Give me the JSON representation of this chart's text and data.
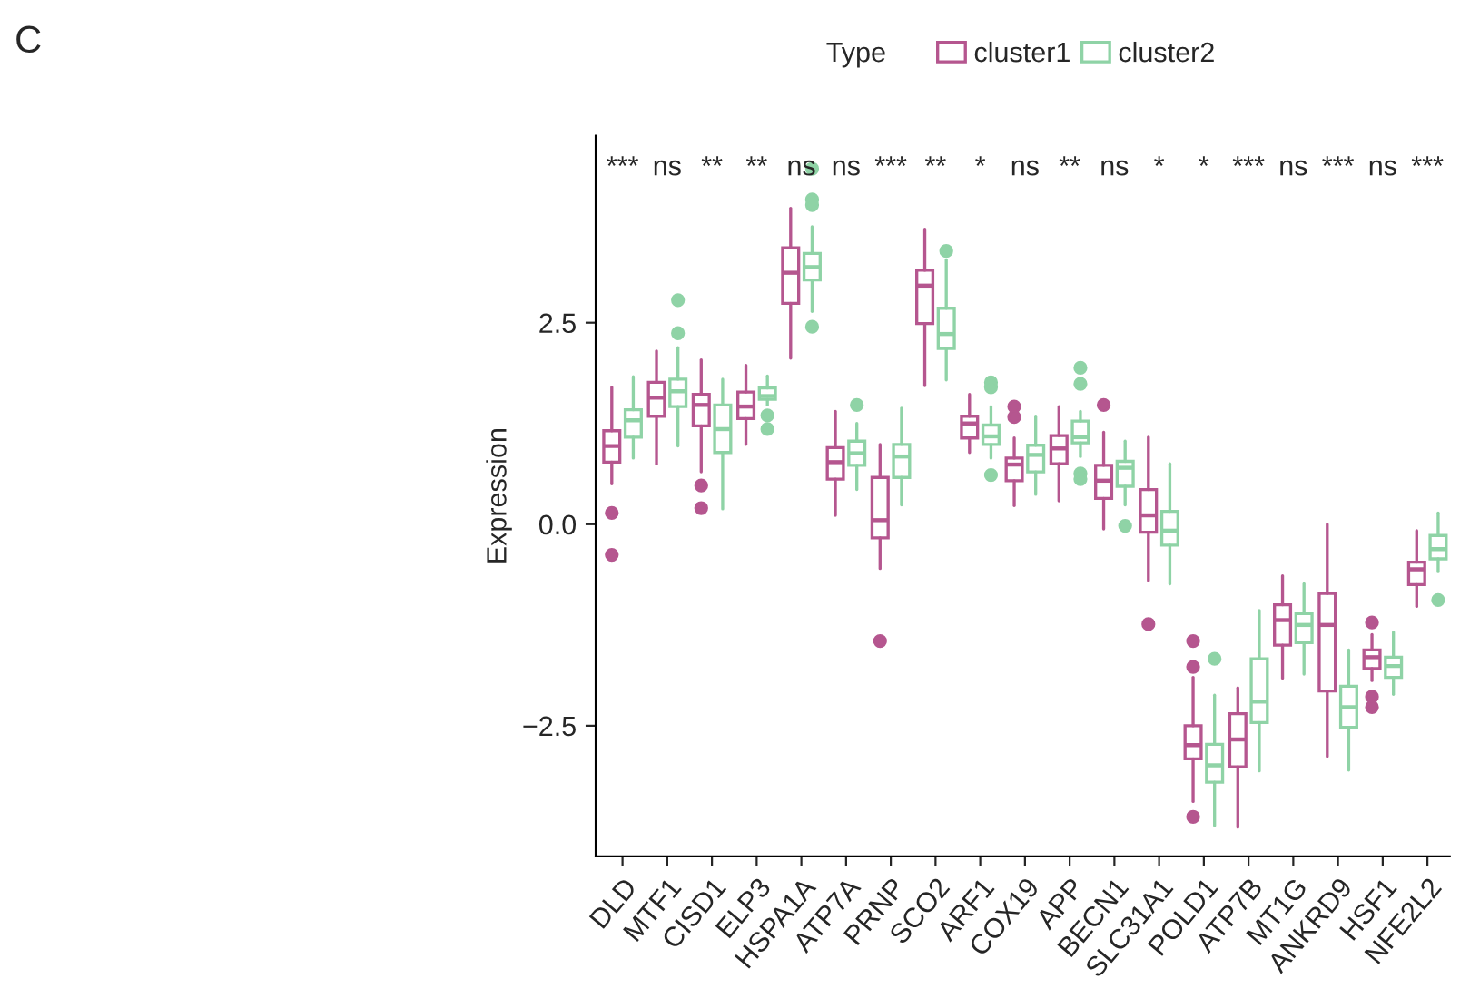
{
  "chart_data": {
    "type": "box",
    "xlabel": null,
    "ylabel": "Expression",
    "legend_title": "Type",
    "legend": "top",
    "marker": "circle",
    "categories": [
      "DLD",
      "MTF1",
      "CISD1",
      "ELP3",
      "HSPA1A",
      "ATP7A",
      "PRNP",
      "SCO2",
      "ARF1",
      "COX19",
      "APP",
      "BECN1",
      "SLC31A1",
      "POLD1",
      "ATP7B",
      "MT1G",
      "ANKRD9",
      "HSF1",
      "NFE2L2"
    ],
    "ylim": [
      -4.12,
      4.82
    ],
    "yticks": [
      {
        "value": -2.5,
        "label": "−2.5"
      },
      {
        "value": 0,
        "label": "0.0"
      },
      {
        "value": 2.5,
        "label": "2.5"
      }
    ],
    "grid": false,
    "series": [
      {
        "name": "cluster1",
        "color": "#b5568f",
        "boxes": [
          {
            "low": 0.5,
            "q1": 0.77,
            "median": 0.97,
            "q3": 1.16,
            "high": 1.7,
            "outliers": [
              0.14,
              -0.38
            ]
          },
          {
            "low": 0.75,
            "q1": 1.34,
            "median": 1.57,
            "q3": 1.76,
            "high": 2.15
          },
          {
            "low": 0.65,
            "q1": 1.22,
            "median": 1.48,
            "q3": 1.61,
            "high": 2.04,
            "outliers": [
              0.48,
              0.2
            ]
          },
          {
            "low": 0.99,
            "q1": 1.31,
            "median": 1.46,
            "q3": 1.64,
            "high": 1.97
          },
          {
            "low": 2.06,
            "q1": 2.74,
            "median": 3.12,
            "q3": 3.43,
            "high": 3.92
          },
          {
            "low": 0.11,
            "q1": 0.56,
            "median": 0.77,
            "q3": 0.95,
            "high": 1.4
          },
          {
            "low": -0.55,
            "q1": -0.17,
            "median": 0.05,
            "q3": 0.58,
            "high": 0.99,
            "outliers": [
              -1.45
            ]
          },
          {
            "low": 1.72,
            "q1": 2.49,
            "median": 2.96,
            "q3": 3.15,
            "high": 3.66
          },
          {
            "low": 0.89,
            "q1": 1.07,
            "median": 1.25,
            "q3": 1.34,
            "high": 1.61
          },
          {
            "low": 0.23,
            "q1": 0.54,
            "median": 0.74,
            "q3": 0.82,
            "high": 1.07,
            "outliers": [
              1.46,
              1.33
            ]
          },
          {
            "low": 0.29,
            "q1": 0.75,
            "median": 0.94,
            "q3": 1.1,
            "high": 1.46
          },
          {
            "low": -0.06,
            "q1": 0.32,
            "median": 0.54,
            "q3": 0.73,
            "high": 1.14,
            "outliers": [
              1.48
            ]
          },
          {
            "low": -0.7,
            "q1": -0.1,
            "median": 0.11,
            "q3": 0.43,
            "high": 1.08,
            "outliers": [
              -1.24
            ]
          },
          {
            "low": -3.44,
            "q1": -2.91,
            "median": -2.74,
            "q3": -2.5,
            "high": -1.9,
            "outliers": [
              -1.45,
              -1.77,
              -3.63
            ]
          },
          {
            "low": -3.76,
            "q1": -3.01,
            "median": -2.67,
            "q3": -2.35,
            "high": -2.03
          },
          {
            "low": -1.91,
            "q1": -1.5,
            "median": -1.19,
            "q3": -1.0,
            "high": -0.64
          },
          {
            "low": -2.88,
            "q1": -2.07,
            "median": -1.25,
            "q3": -0.86,
            "high": 0.0
          },
          {
            "low": -1.94,
            "q1": -1.79,
            "median": -1.65,
            "q3": -1.56,
            "high": -1.37,
            "outliers": [
              -1.22,
              -2.14,
              -2.27
            ]
          },
          {
            "low": -1.02,
            "q1": -0.75,
            "median": -0.56,
            "q3": -0.47,
            "high": -0.08
          }
        ]
      },
      {
        "name": "cluster2",
        "color": "#8fd3a6",
        "boxes": [
          {
            "low": 0.82,
            "q1": 1.08,
            "median": 1.29,
            "q3": 1.42,
            "high": 1.83
          },
          {
            "low": 0.97,
            "q1": 1.46,
            "median": 1.65,
            "q3": 1.8,
            "high": 2.19,
            "outliers": [
              2.78,
              2.37
            ]
          },
          {
            "low": 0.19,
            "q1": 0.89,
            "median": 1.18,
            "q3": 1.48,
            "high": 1.8
          },
          {
            "low": 1.48,
            "q1": 1.55,
            "median": 1.59,
            "q3": 1.69,
            "high": 1.84,
            "outliers": [
              1.35,
              1.18
            ]
          },
          {
            "low": 2.64,
            "q1": 3.03,
            "median": 3.19,
            "q3": 3.36,
            "high": 3.69,
            "outliers": [
              4.41,
              4.03,
              3.96,
              2.45
            ]
          },
          {
            "low": 0.43,
            "q1": 0.73,
            "median": 0.88,
            "q3": 1.03,
            "high": 1.25,
            "outliers": [
              1.48
            ]
          },
          {
            "low": 0.24,
            "q1": 0.58,
            "median": 0.84,
            "q3": 0.99,
            "high": 1.44
          },
          {
            "low": 1.79,
            "q1": 2.18,
            "median": 2.36,
            "q3": 2.68,
            "high": 3.28,
            "outliers": [
              3.39
            ]
          },
          {
            "low": 0.82,
            "q1": 0.99,
            "median": 1.09,
            "q3": 1.23,
            "high": 1.46,
            "outliers": [
              1.76,
              1.7,
              0.61
            ]
          },
          {
            "low": 0.37,
            "q1": 0.65,
            "median": 0.86,
            "q3": 0.98,
            "high": 1.34
          },
          {
            "low": 0.84,
            "q1": 1.01,
            "median": 1.08,
            "q3": 1.28,
            "high": 1.4,
            "outliers": [
              1.94,
              1.74,
              0.63,
              0.56
            ]
          },
          {
            "low": 0.24,
            "q1": 0.47,
            "median": 0.7,
            "q3": 0.78,
            "high": 1.03,
            "outliers": [
              -0.02
            ]
          },
          {
            "low": -0.74,
            "q1": -0.26,
            "median": -0.08,
            "q3": 0.16,
            "high": 0.75
          },
          {
            "low": -3.74,
            "q1": -3.2,
            "median": -2.99,
            "q3": -2.73,
            "high": -2.12,
            "outliers": [
              -1.67
            ]
          },
          {
            "low": -3.06,
            "q1": -2.46,
            "median": -2.2,
            "q3": -1.67,
            "high": -1.07
          },
          {
            "low": -1.86,
            "q1": -1.47,
            "median": -1.25,
            "q3": -1.11,
            "high": -0.74
          },
          {
            "low": -3.05,
            "q1": -2.52,
            "median": -2.27,
            "q3": -2.01,
            "high": -1.56
          },
          {
            "low": -2.11,
            "q1": -1.9,
            "median": -1.76,
            "q3": -1.65,
            "high": -1.34
          },
          {
            "low": -0.59,
            "q1": -0.43,
            "median": -0.31,
            "q3": -0.14,
            "high": 0.14,
            "outliers": [
              -0.94
            ]
          }
        ]
      }
    ],
    "annotations": [
      "C",
      "***",
      "ns",
      "**",
      "**",
      "ns",
      "ns",
      "***",
      "**",
      "*",
      "ns",
      "**",
      "ns",
      "*",
      "*",
      "***",
      "ns",
      "***",
      "ns",
      "***"
    ]
  }
}
